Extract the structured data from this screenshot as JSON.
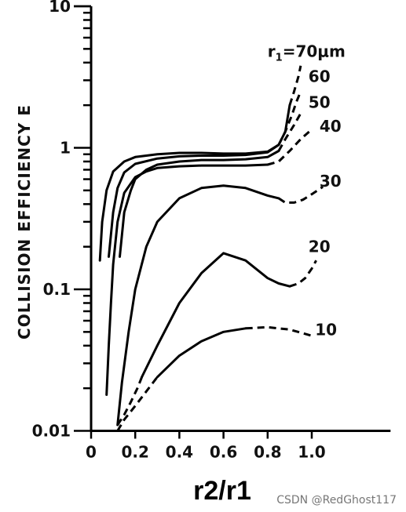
{
  "chart_data": {
    "type": "line",
    "title": "",
    "xlabel": "r2/r1",
    "ylabel": "COLLISION EFFICIENCY E",
    "xscale": "linear",
    "yscale": "log",
    "xlim": [
      0,
      1.3
    ],
    "ylim": [
      0.01,
      10
    ],
    "x_ticks": [
      0,
      0.2,
      0.4,
      0.6,
      0.8,
      1.0
    ],
    "x_tick_labels": [
      "0",
      "0.2",
      "0.4",
      "0.6",
      "0.8",
      "1.0"
    ],
    "y_ticks": [
      0.01,
      0.1,
      1,
      10
    ],
    "y_tick_labels": [
      "0.01",
      "0.1",
      "1",
      "10"
    ],
    "grid": false,
    "legend": "inline labels at curve ends",
    "series": [
      {
        "name": "r₁=70μm",
        "label_parts": [
          "r",
          "1",
          "=70μm"
        ],
        "x": [
          0.04,
          0.05,
          0.07,
          0.1,
          0.15,
          0.2,
          0.3,
          0.4,
          0.5,
          0.6,
          0.7,
          0.8,
          0.85,
          0.88,
          0.9
        ],
        "y": [
          0.16,
          0.3,
          0.5,
          0.68,
          0.8,
          0.86,
          0.9,
          0.92,
          0.92,
          0.91,
          0.91,
          0.94,
          1.05,
          1.3,
          2.0
        ],
        "dashed_from_x": 0.85,
        "dashed_x": [
          0.9,
          0.92,
          0.94,
          0.95
        ],
        "dashed_y": [
          2.0,
          2.5,
          3.2,
          3.8
        ]
      },
      {
        "name": "60",
        "label": "60",
        "x": [
          0.08,
          0.1,
          0.12,
          0.15,
          0.2,
          0.3,
          0.4,
          0.5,
          0.6,
          0.7,
          0.8,
          0.85
        ],
        "y": [
          0.17,
          0.35,
          0.52,
          0.67,
          0.77,
          0.84,
          0.87,
          0.88,
          0.88,
          0.89,
          0.93,
          1.05
        ],
        "dashed_x": [
          0.85,
          0.88,
          0.91,
          0.93,
          0.95
        ],
        "dashed_y": [
          1.05,
          1.3,
          1.7,
          2.1,
          2.5
        ]
      },
      {
        "name": "50",
        "label": "50",
        "x": [
          0.13,
          0.15,
          0.18,
          0.2,
          0.25,
          0.3,
          0.4,
          0.5,
          0.6,
          0.7,
          0.8,
          0.85
        ],
        "y": [
          0.17,
          0.35,
          0.5,
          0.6,
          0.7,
          0.76,
          0.8,
          0.82,
          0.82,
          0.83,
          0.86,
          0.95
        ],
        "dashed_x": [
          0.85,
          0.88,
          0.92,
          0.95
        ],
        "dashed_y": [
          0.95,
          1.15,
          1.45,
          1.75
        ]
      },
      {
        "name": "40",
        "label": "40",
        "x": [
          0.07,
          0.08,
          0.09,
          0.1,
          0.12,
          0.15,
          0.2,
          0.25,
          0.3,
          0.4,
          0.5,
          0.6,
          0.7,
          0.8
        ],
        "y": [
          0.018,
          0.04,
          0.08,
          0.15,
          0.3,
          0.48,
          0.62,
          0.68,
          0.72,
          0.74,
          0.75,
          0.75,
          0.75,
          0.76
        ],
        "dashed_x": [
          0.8,
          0.85,
          0.9,
          0.95,
          1.0
        ],
        "dashed_y": [
          0.76,
          0.8,
          0.95,
          1.15,
          1.35
        ]
      },
      {
        "name": "30",
        "label": "30",
        "x": [
          0.12,
          0.14,
          0.17,
          0.2,
          0.25,
          0.3,
          0.4,
          0.5,
          0.6,
          0.7,
          0.8,
          0.85
        ],
        "y": [
          0.011,
          0.022,
          0.05,
          0.1,
          0.2,
          0.3,
          0.44,
          0.52,
          0.54,
          0.52,
          0.46,
          0.44
        ],
        "dashed_x": [
          0.85,
          0.88,
          0.92,
          0.96,
          1.0,
          1.05
        ],
        "dashed_y": [
          0.44,
          0.41,
          0.41,
          0.43,
          0.47,
          0.53
        ]
      },
      {
        "name": "20",
        "label": "20",
        "x": [
          0.23,
          0.3,
          0.4,
          0.5,
          0.6,
          0.7,
          0.8,
          0.85,
          0.9
        ],
        "y": [
          0.024,
          0.04,
          0.08,
          0.13,
          0.18,
          0.16,
          0.12,
          0.11,
          0.105
        ],
        "dashed_x": [
          0.12,
          0.15,
          0.18,
          0.21,
          0.23
        ],
        "dashed_y": [
          0.011,
          0.013,
          0.016,
          0.02,
          0.024
        ],
        "dashed_x2": [
          0.9,
          0.94,
          0.97,
          1.0,
          1.02
        ],
        "dashed_y2": [
          0.105,
          0.11,
          0.12,
          0.14,
          0.16
        ]
      },
      {
        "name": "10",
        "label": "10",
        "x": [
          0.3,
          0.4,
          0.5,
          0.6,
          0.7
        ],
        "y": [
          0.024,
          0.034,
          0.043,
          0.05,
          0.053
        ],
        "dashed_x": [
          0.12,
          0.15,
          0.2,
          0.25,
          0.3
        ],
        "dashed_y": [
          0.01,
          0.012,
          0.015,
          0.019,
          0.024
        ],
        "dashed_x2": [
          0.7,
          0.8,
          0.9,
          1.0
        ],
        "dashed_y2": [
          0.053,
          0.054,
          0.052,
          0.047
        ]
      }
    ]
  },
  "watermark": "CSDN @RedGhost117"
}
